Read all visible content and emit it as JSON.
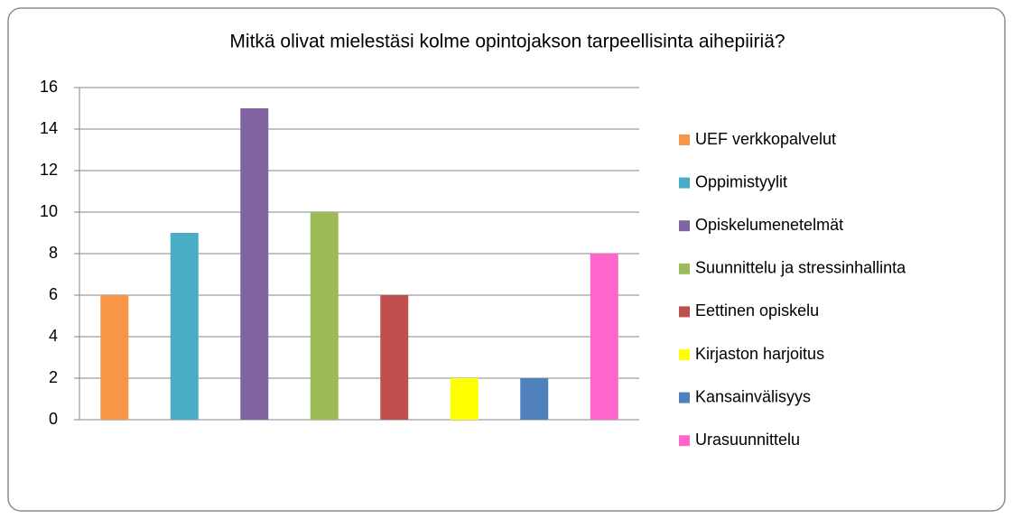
{
  "chart_data": {
    "type": "bar",
    "title": "Mitkä olivat mielestäsi kolme opintojakson tarpeellisinta aihepiiriä?",
    "series": [
      {
        "name": "UEF verkkopalvelut",
        "color": "#f79646",
        "values": [
          6
        ]
      },
      {
        "name": "Oppimistyylit",
        "color": "#4bacc6",
        "values": [
          9
        ]
      },
      {
        "name": "Opiskelumenetelmät",
        "color": "#8064a2",
        "values": [
          15
        ]
      },
      {
        "name": "Suunnittelu ja stressinhallinta",
        "color": "#9bbb59",
        "values": [
          10
        ]
      },
      {
        "name": "Eettinen opiskelu",
        "color": "#c0504d",
        "values": [
          6
        ]
      },
      {
        "name": "Kirjaston harjoitus",
        "color": "#ffff00",
        "values": [
          2
        ]
      },
      {
        "name": "Kansainvälisyys",
        "color": "#4f81bd",
        "values": [
          2
        ]
      },
      {
        "name": "Urasuunnittelu",
        "color": "#ff66cc",
        "values": [
          8
        ]
      }
    ],
    "ylim": [
      0,
      16
    ],
    "yticks": [
      0,
      2,
      4,
      6,
      8,
      10,
      12,
      14,
      16
    ],
    "grid": true,
    "legend": "right"
  }
}
